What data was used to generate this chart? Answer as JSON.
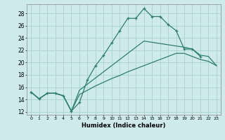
{
  "xlabel": "Humidex (Indice chaleur)",
  "bg_color": "#ceeaea",
  "grid_color": "#aed4d4",
  "line_color": "#2e7d6e",
  "xlim": [
    -0.5,
    23.5
  ],
  "ylim": [
    11.5,
    29.5
  ],
  "yticks": [
    12,
    14,
    16,
    18,
    20,
    22,
    24,
    26,
    28
  ],
  "xticks": [
    0,
    1,
    2,
    3,
    4,
    5,
    6,
    7,
    8,
    9,
    10,
    11,
    12,
    13,
    14,
    15,
    16,
    17,
    18,
    19,
    20,
    21,
    22,
    23
  ],
  "curve1_x": [
    0,
    1,
    2,
    3,
    4,
    5,
    6,
    7,
    8,
    9,
    10,
    11,
    12,
    13,
    14,
    15,
    16,
    17,
    18,
    19,
    20,
    21
  ],
  "curve1_y": [
    15.2,
    14.1,
    15.0,
    15.0,
    14.6,
    12.1,
    13.5,
    17.2,
    19.5,
    21.2,
    23.2,
    25.2,
    27.2,
    27.2,
    28.8,
    27.5,
    27.5,
    26.2,
    25.2,
    22.2,
    22.2,
    21.0
  ],
  "curve2_x": [
    0,
    1,
    2,
    3,
    4,
    5,
    6,
    7,
    8,
    9,
    10,
    11,
    12,
    13,
    14,
    19,
    20,
    21,
    22,
    23
  ],
  "curve2_y": [
    15.2,
    14.1,
    15.0,
    15.0,
    14.6,
    12.1,
    15.5,
    16.5,
    17.5,
    18.5,
    19.5,
    20.5,
    21.5,
    22.5,
    23.5,
    22.5,
    22.2,
    21.2,
    21.0,
    19.5
  ],
  "curve3_x": [
    0,
    1,
    2,
    3,
    4,
    5,
    6,
    7,
    8,
    9,
    10,
    11,
    12,
    13,
    14,
    15,
    16,
    17,
    18,
    19,
    20,
    21,
    22,
    23
  ],
  "curve3_y": [
    15.2,
    14.1,
    15.0,
    15.0,
    14.6,
    12.1,
    14.8,
    15.5,
    16.2,
    16.8,
    17.4,
    17.9,
    18.5,
    19.0,
    19.5,
    20.0,
    20.5,
    21.0,
    21.5,
    21.5,
    21.0,
    20.5,
    20.2,
    19.5
  ]
}
